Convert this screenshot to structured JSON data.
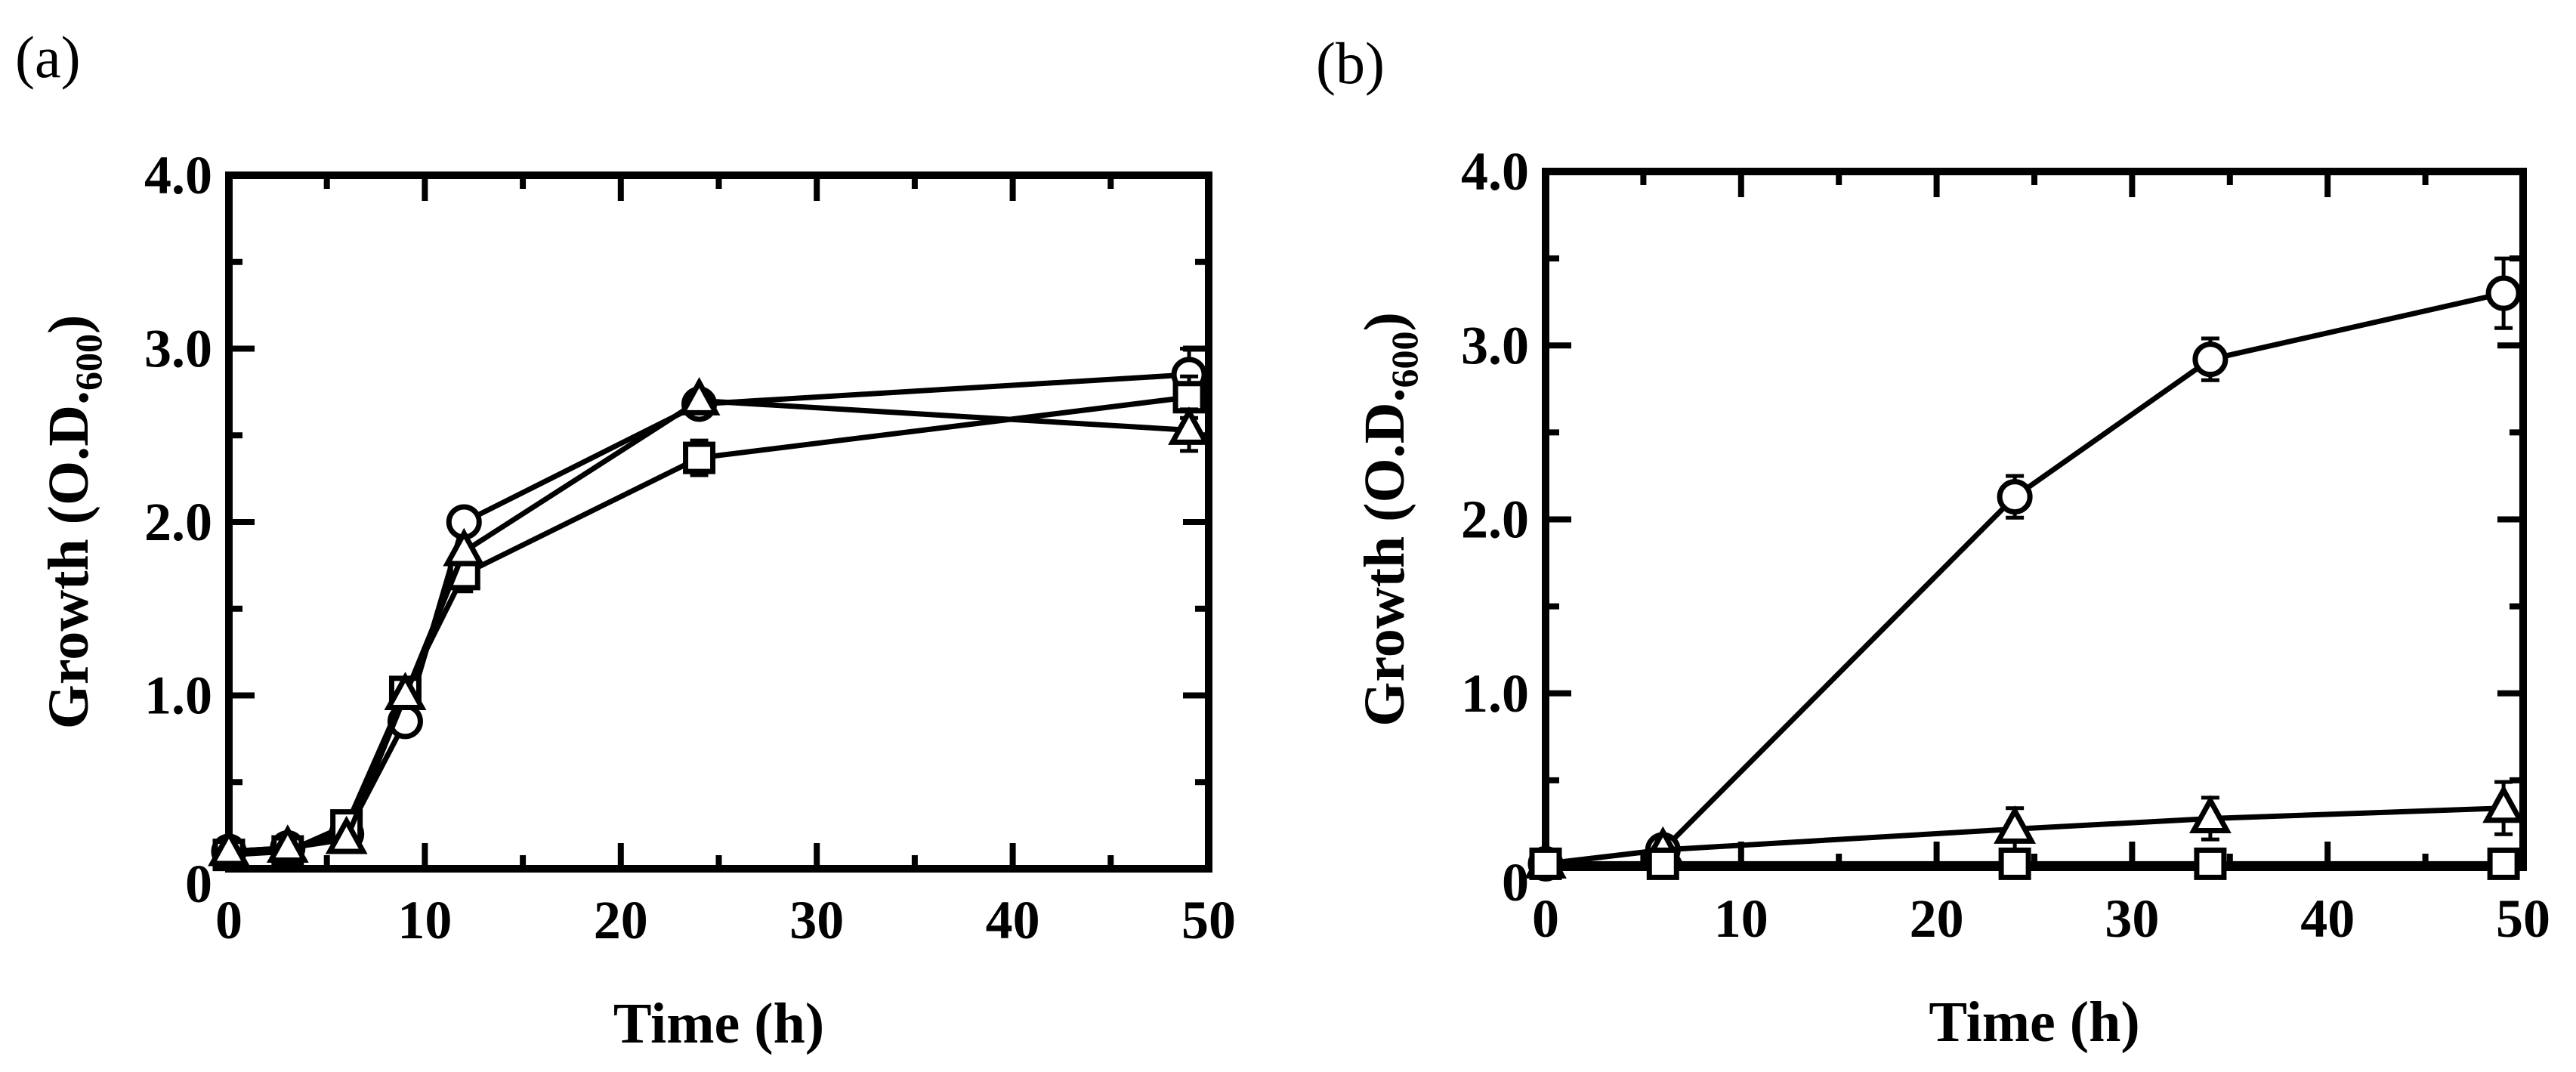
{
  "chart_data": [
    {
      "type": "line",
      "panel_label": "(a)",
      "xlabel": "Time (h)",
      "ylabel_main": "Growth (O.D.",
      "ylabel_sub": "600",
      "ylabel_close": ")",
      "xlim": [
        0,
        50
      ],
      "ylim": [
        0,
        4.0
      ],
      "x_ticks": [
        0,
        10,
        20,
        30,
        40,
        50
      ],
      "x_tick_labels": [
        "0",
        "10",
        "20",
        "30",
        "40",
        "50"
      ],
      "y_ticks": [
        0,
        1.0,
        2.0,
        3.0,
        4.0
      ],
      "y_tick_labels": [
        "0",
        "1.0",
        "2.0",
        "3.0",
        "4.0"
      ],
      "grid": false,
      "series": [
        {
          "marker": "circle",
          "x": [
            0,
            3,
            6,
            9,
            12,
            24,
            49
          ],
          "y": [
            0.1,
            0.12,
            0.2,
            0.85,
            2.0,
            2.68,
            2.85
          ],
          "err": [
            0,
            0,
            0,
            0,
            0,
            0,
            0.15
          ]
        },
        {
          "marker": "square",
          "x": [
            0,
            3,
            6,
            9,
            12,
            24,
            49
          ],
          "y": [
            0.08,
            0.1,
            0.25,
            1.02,
            1.7,
            2.37,
            2.72
          ],
          "err": [
            0,
            0,
            0,
            0,
            0.1,
            0.1,
            0.12
          ]
        },
        {
          "marker": "triangle",
          "x": [
            0,
            3,
            6,
            9,
            12,
            24,
            49
          ],
          "y": [
            0.1,
            0.12,
            0.17,
            1.0,
            1.83,
            2.7,
            2.53
          ],
          "err": [
            0,
            0,
            0,
            0,
            0,
            0,
            0.12
          ]
        }
      ]
    },
    {
      "type": "line",
      "panel_label": "(b)",
      "xlabel": "Time (h)",
      "ylabel_main": "Growth (O.D.",
      "ylabel_sub": "600",
      "ylabel_close": ")",
      "xlim": [
        0,
        50
      ],
      "ylim": [
        0,
        4.0
      ],
      "x_ticks": [
        0,
        10,
        20,
        30,
        40,
        50
      ],
      "x_tick_labels": [
        "0",
        "10",
        "20",
        "30",
        "40",
        "50"
      ],
      "y_ticks": [
        0,
        1.0,
        2.0,
        3.0,
        4.0
      ],
      "y_tick_labels": [
        "0",
        "1.0",
        "2.0",
        "3.0",
        "4.0"
      ],
      "grid": false,
      "series": [
        {
          "marker": "circle",
          "x": [
            0,
            6,
            24,
            34,
            49
          ],
          "y": [
            0.02,
            0.1,
            2.13,
            2.92,
            3.3
          ],
          "err": [
            0,
            0,
            0.12,
            0.12,
            0.2
          ]
        },
        {
          "marker": "triangle",
          "x": [
            0,
            6,
            24,
            34,
            49
          ],
          "y": [
            0.02,
            0.1,
            0.22,
            0.28,
            0.34
          ],
          "err": [
            0,
            0,
            0.12,
            0.12,
            0.15
          ]
        },
        {
          "marker": "square",
          "x": [
            0,
            6,
            24,
            34,
            49
          ],
          "y": [
            0.02,
            0.02,
            0.02,
            0.02,
            0.02
          ],
          "err": [
            0,
            0,
            0,
            0,
            0
          ]
        }
      ]
    }
  ]
}
